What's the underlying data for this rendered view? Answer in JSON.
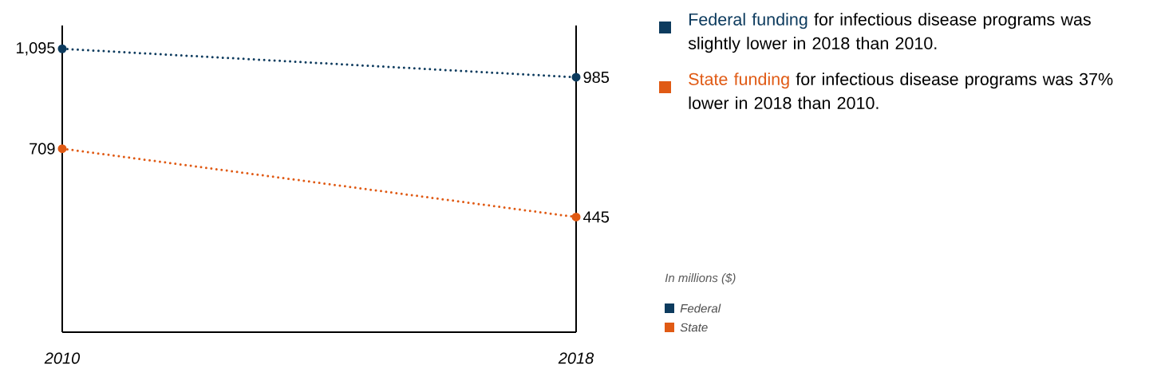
{
  "chart_data": {
    "type": "line",
    "categories": [
      "2010",
      "2018"
    ],
    "series": [
      {
        "name": "Federal",
        "color": "#0d3b5e",
        "values": [
          1095,
          985
        ],
        "value_labels": [
          "1,095",
          "985"
        ]
      },
      {
        "name": "State",
        "color": "#e05a14",
        "values": [
          709,
          445
        ],
        "value_labels": [
          "709",
          "445"
        ]
      }
    ],
    "ylim": [
      0,
      1185
    ],
    "marker": "circle",
    "line_style": "dotted",
    "legend": "bottom right",
    "legend_title": "In millions ($)",
    "annotations": [
      "Federal funding",
      "for infectious disease programs was slightly lower in 2018 than 2010.",
      "State funding",
      "for infectious disease programs was 37% lower in 2018 than 2010."
    ]
  }
}
